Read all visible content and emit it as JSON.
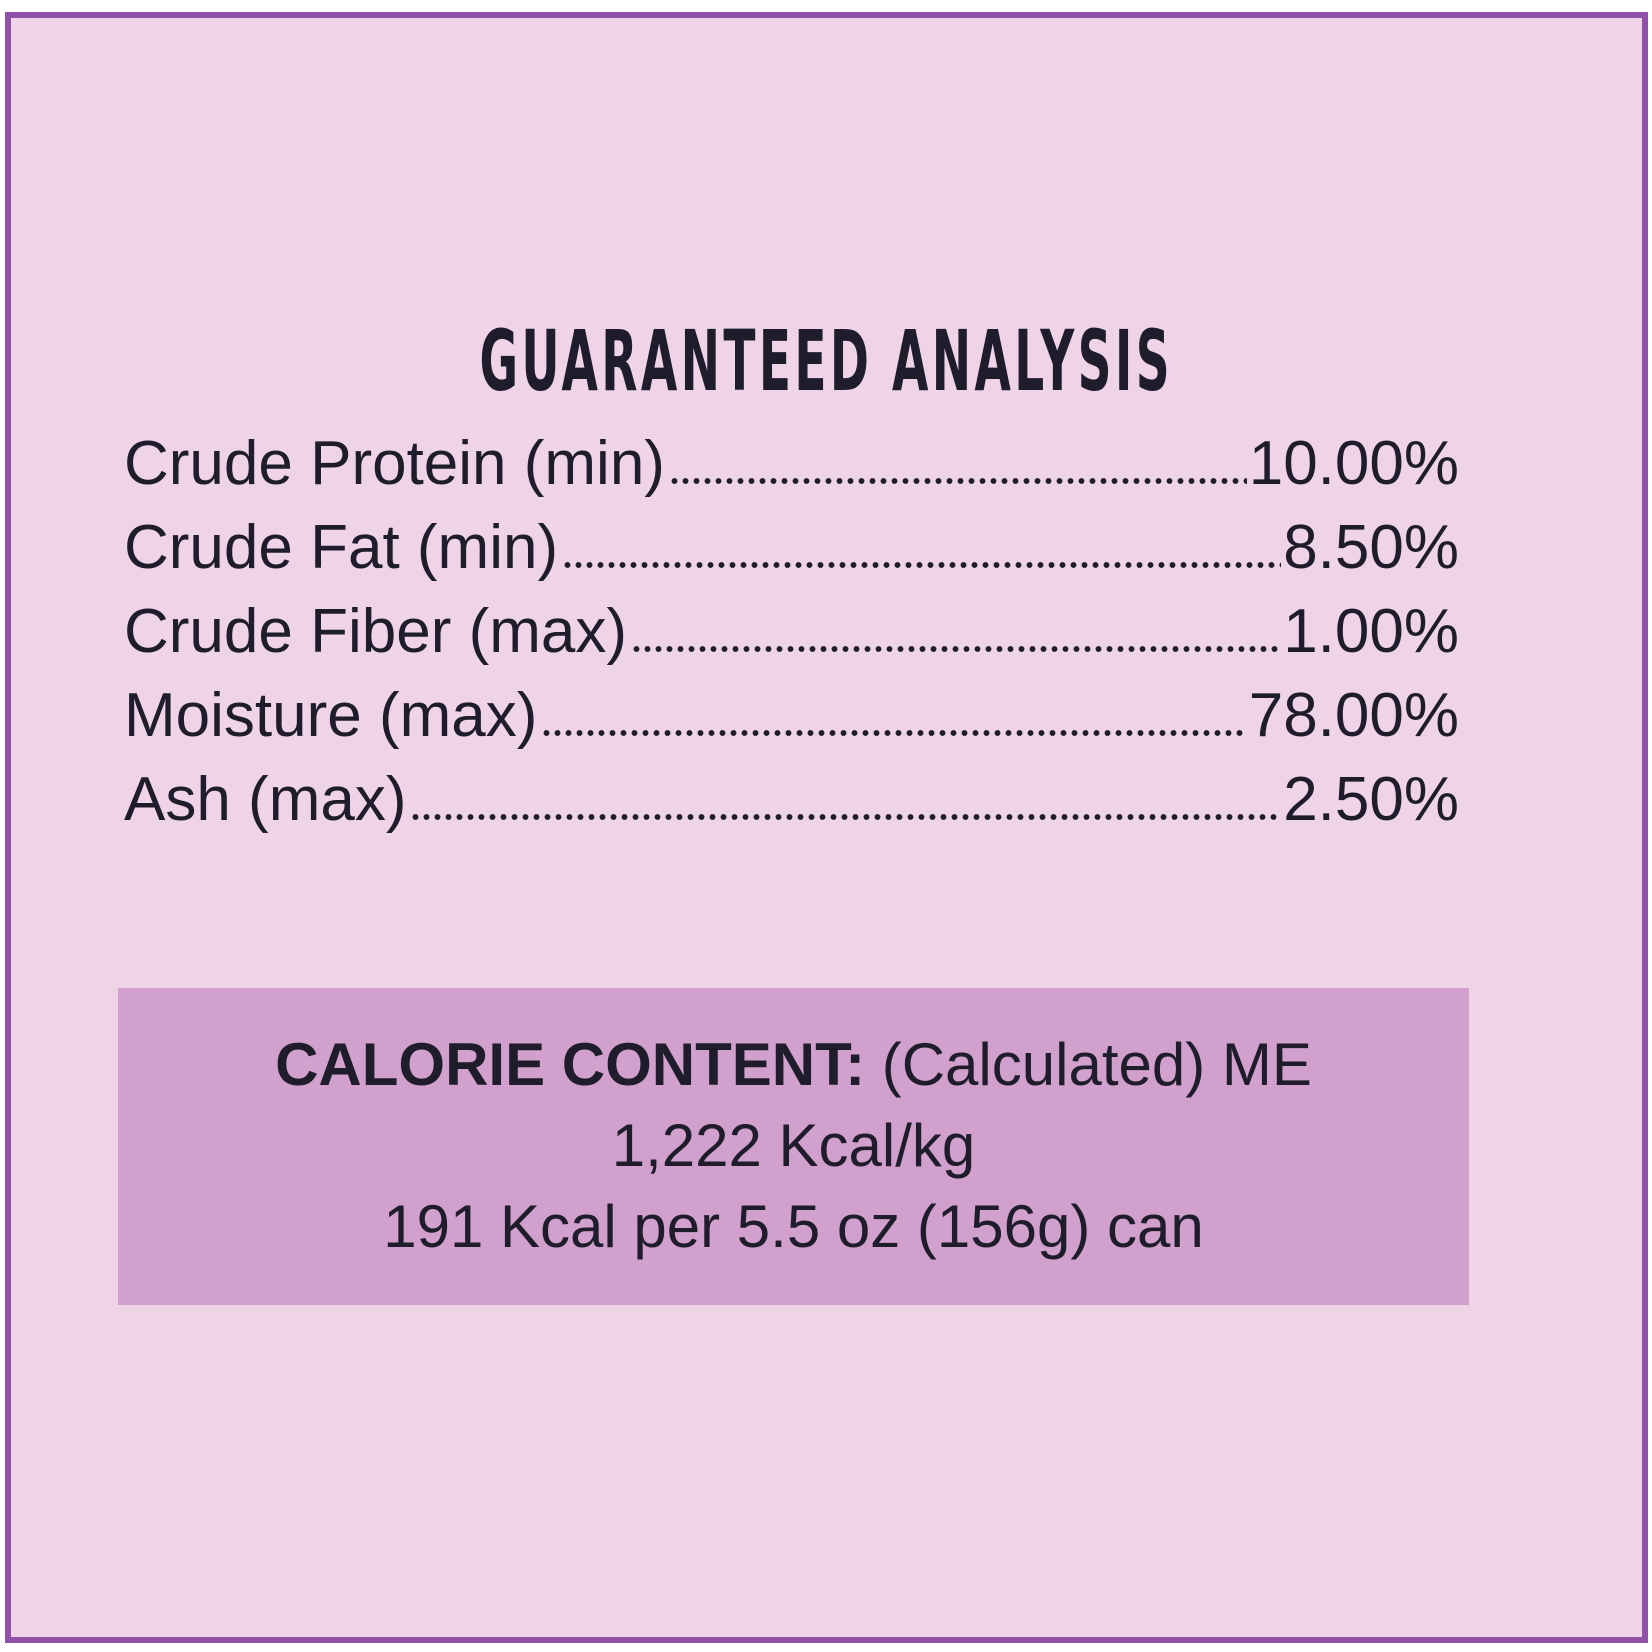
{
  "title": "GUARANTEED ANALYSIS",
  "rows": [
    {
      "label": "Crude Protein (min)",
      "value": "10.00%"
    },
    {
      "label": "Crude Fat (min)",
      "value": "8.50%"
    },
    {
      "label": "Crude Fiber (max)",
      "value": "1.00%"
    },
    {
      "label": "Moisture (max)",
      "value": "78.00%"
    },
    {
      "label": "Ash (max)",
      "value": "2.50%"
    }
  ],
  "calorie": {
    "heading": "CALORIE CONTENT:",
    "basis": "(Calculated) ME",
    "lines": [
      "1,222 Kcal/kg",
      "191 Kcal per 5.5 oz (156g) can"
    ]
  }
}
